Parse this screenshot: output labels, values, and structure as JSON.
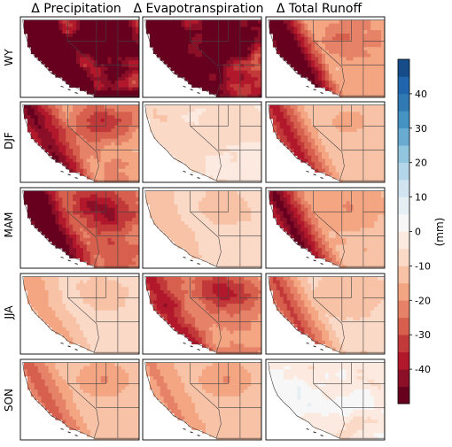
{
  "chart_data": {
    "type": "heatmap",
    "columns": [
      "Δ Precipitation",
      "Δ Evapotranspiration",
      "Δ Total Runoff"
    ],
    "rows": [
      "WY",
      "DJF",
      "MAM",
      "JJA",
      "SON"
    ],
    "colorbar": {
      "label": "(mm)",
      "range": [
        -50,
        50
      ],
      "ticks": [
        40,
        30,
        20,
        10,
        0,
        -10,
        -20,
        -30,
        -40
      ],
      "levels": [
        -50,
        -45,
        -40,
        -35,
        -30,
        -25,
        -20,
        -15,
        -10,
        -5,
        0,
        5,
        10,
        15,
        20,
        25,
        30,
        35,
        40,
        45,
        50
      ],
      "colormap": "RdBu",
      "colors": [
        "#67001f",
        "#8b0f27",
        "#b2182b",
        "#c2393a",
        "#d6604d",
        "#e58268",
        "#f4a582",
        "#f7c2a6",
        "#fbd9c7",
        "#fce9df",
        "#f7f7f7",
        "#e6eff4",
        "#d1e5f0",
        "#b5d6e9",
        "#92c5de",
        "#6aabd1",
        "#4393c3",
        "#3079b3",
        "#2166ac",
        "#164c8a",
        "#053061"
      ]
    },
    "panels_mean_mm": [
      [
        -45,
        -40,
        -18
      ],
      [
        -20,
        -5,
        -12
      ],
      [
        -25,
        -8,
        -15
      ],
      [
        -8,
        -22,
        -10
      ],
      [
        -12,
        -12,
        -2
      ]
    ]
  },
  "colors": {
    "axis": "#000000",
    "background": "#ffffff"
  }
}
